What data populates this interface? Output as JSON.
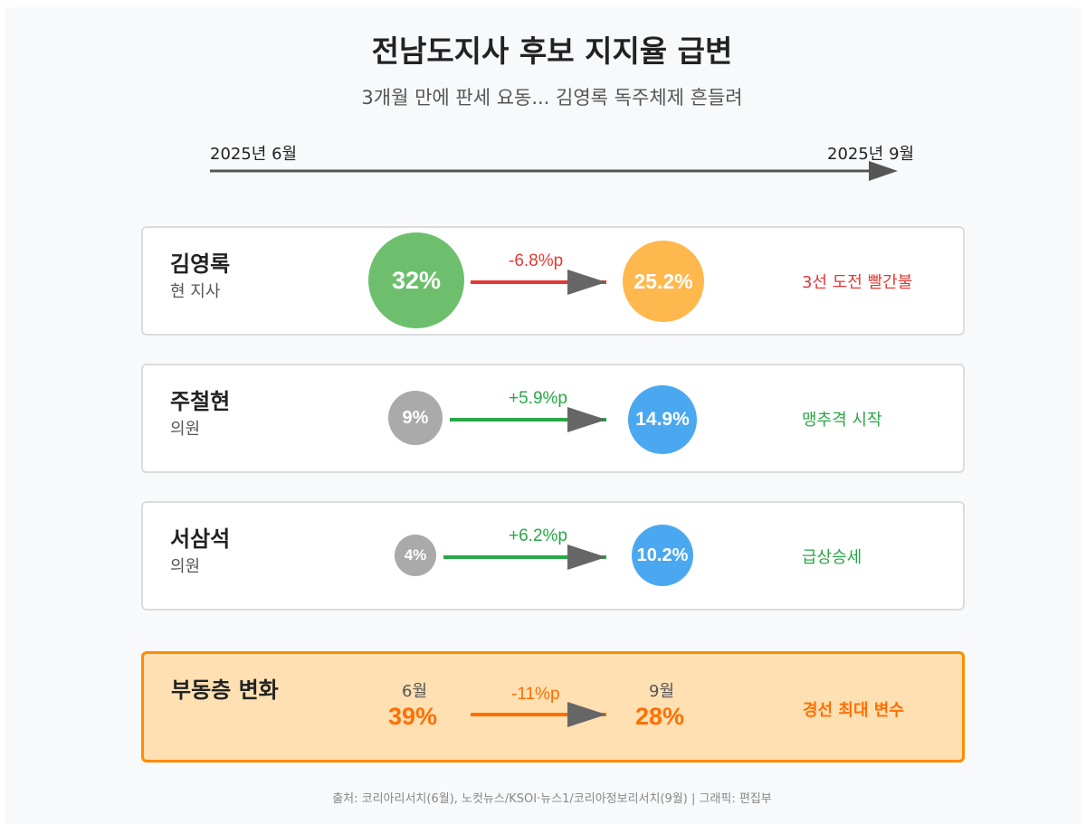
{
  "title": "전남도지사 후보 지지율 급변",
  "subtitle": "3개월 만에 판세 요동... 김영록 독주체제 흔들려",
  "timeline": {
    "start": "2025년 6월",
    "end": "2025년 9월"
  },
  "candidates": [
    {
      "name": "김영록",
      "role": "현 지사",
      "june": "32%",
      "sept": "25.2%",
      "change": "-6.8%p",
      "note": "3선 도전 빨간불",
      "june_color": "#6dbf6d",
      "sept_color": "#ffb84d",
      "change_color": "#e53935"
    },
    {
      "name": "주철현",
      "role": "의원",
      "june": "9%",
      "sept": "14.9%",
      "change": "+5.9%p",
      "note": "맹추격 시작",
      "june_color": "#aaaaaa",
      "sept_color": "#4aa8f0",
      "change_color": "#28a745"
    },
    {
      "name": "서삼석",
      "role": "의원",
      "june": "4%",
      "sept": "10.2%",
      "change": "+6.2%p",
      "note": "급상승세",
      "june_color": "#aaaaaa",
      "sept_color": "#4aa8f0",
      "change_color": "#28a745"
    }
  ],
  "undecided": {
    "name": "부동층 변화",
    "june_label": "6월",
    "sept_label": "9월",
    "june": "39%",
    "sept": "28%",
    "change": "-11%p",
    "note": "경선 최대 변수",
    "color": "#ff6f00"
  },
  "footer": "출처: 코리아리서치(6월), 노컷뉴스/KSOI·뉴스1/코리아정보리서치(9월) | 그래픽: 편집부"
}
